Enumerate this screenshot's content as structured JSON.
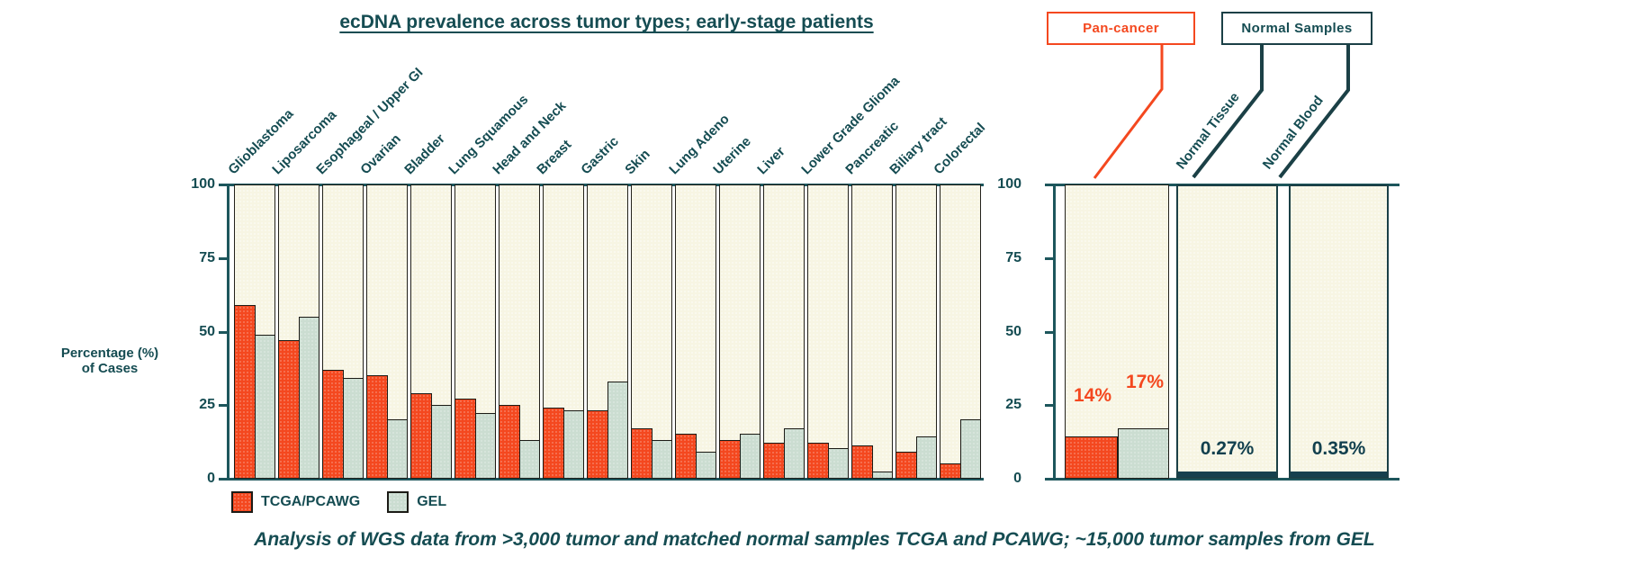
{
  "title": "ecDNA prevalence across tumor types; early-stage patients",
  "ylabel_lines": {
    "line1": "Percentage (%)",
    "line2": "of Cases"
  },
  "caption": "Analysis of WGS data from >3,000 tumor and matched normal samples TCGA and PCAWG; ~15,000 tumor samples from GEL",
  "callouts": {
    "pan_cancer": "Pan-cancer",
    "normal_samples": "Normal Samples"
  },
  "legend": {
    "tcga": "TCGA/PCAWG",
    "gel": "GEL"
  },
  "colors": {
    "accent_orange": "#F4481F",
    "bar_green": "#CBDDD1",
    "teal_text": "#154C52",
    "axis_teal": "#1D565C",
    "plot_background": "#F7F5E3",
    "normal_bar_dark": "#16404E"
  },
  "chart_data": [
    {
      "type": "bar",
      "title": "ecDNA prevalence across tumor types; early-stage patients",
      "xlabel": "",
      "ylabel": "Percentage (%) of Cases",
      "ylim": [
        0,
        100
      ],
      "yticks": [
        100,
        75,
        50,
        25,
        0
      ],
      "grid": false,
      "legend_position": "bottom-left",
      "categories": [
        "Glioblastoma",
        "Liposarcoma",
        "Esophageal / Upper GI",
        "Ovarian",
        "Bladder",
        "Lung Squamous",
        "Head and Neck",
        "Breast",
        "Gastric",
        "Skin",
        "Lung Adeno",
        "Uterine",
        "Liver",
        "Lower Grade Glioma",
        "Pancreatic",
        "Biliary tract",
        "Colorectal"
      ],
      "series": [
        {
          "name": "TCGA/PCAWG",
          "color": "#F4481F",
          "values": [
            59,
            47,
            37,
            35,
            29,
            27,
            25,
            24,
            23,
            17,
            15,
            13,
            12,
            12,
            11,
            9,
            5
          ]
        },
        {
          "name": "GEL",
          "color": "#CBDDD1",
          "values": [
            49,
            55,
            34,
            20,
            25,
            22,
            13,
            23,
            33,
            13,
            9,
            15,
            17,
            10,
            2,
            14,
            20
          ]
        }
      ]
    },
    {
      "type": "bar",
      "title": "Pan-cancer and normal samples",
      "ylim": [
        0,
        100
      ],
      "yticks": [
        100,
        75,
        50,
        25,
        0
      ],
      "grid": false,
      "categories": [
        "Pan-cancer",
        "Normal Tissue",
        "Normal Blood"
      ],
      "series": [
        {
          "name": "TCGA/PCAWG",
          "color": "#F4481F",
          "values": [
            14,
            null,
            null
          ]
        },
        {
          "name": "GEL",
          "color": "#CBDDD1",
          "values": [
            17,
            null,
            null
          ]
        },
        {
          "name": "Normal samples",
          "color": "#16404E",
          "values": [
            null,
            0.27,
            0.35
          ]
        }
      ],
      "annotations": [
        {
          "text": "14%",
          "category": "Pan-cancer",
          "series": "TCGA/PCAWG"
        },
        {
          "text": "17%",
          "category": "Pan-cancer",
          "series": "GEL"
        },
        {
          "text": "0.27%",
          "category": "Normal Tissue",
          "series": "Normal samples"
        },
        {
          "text": "0.35%",
          "category": "Normal Blood",
          "series": "Normal samples"
        }
      ]
    }
  ]
}
